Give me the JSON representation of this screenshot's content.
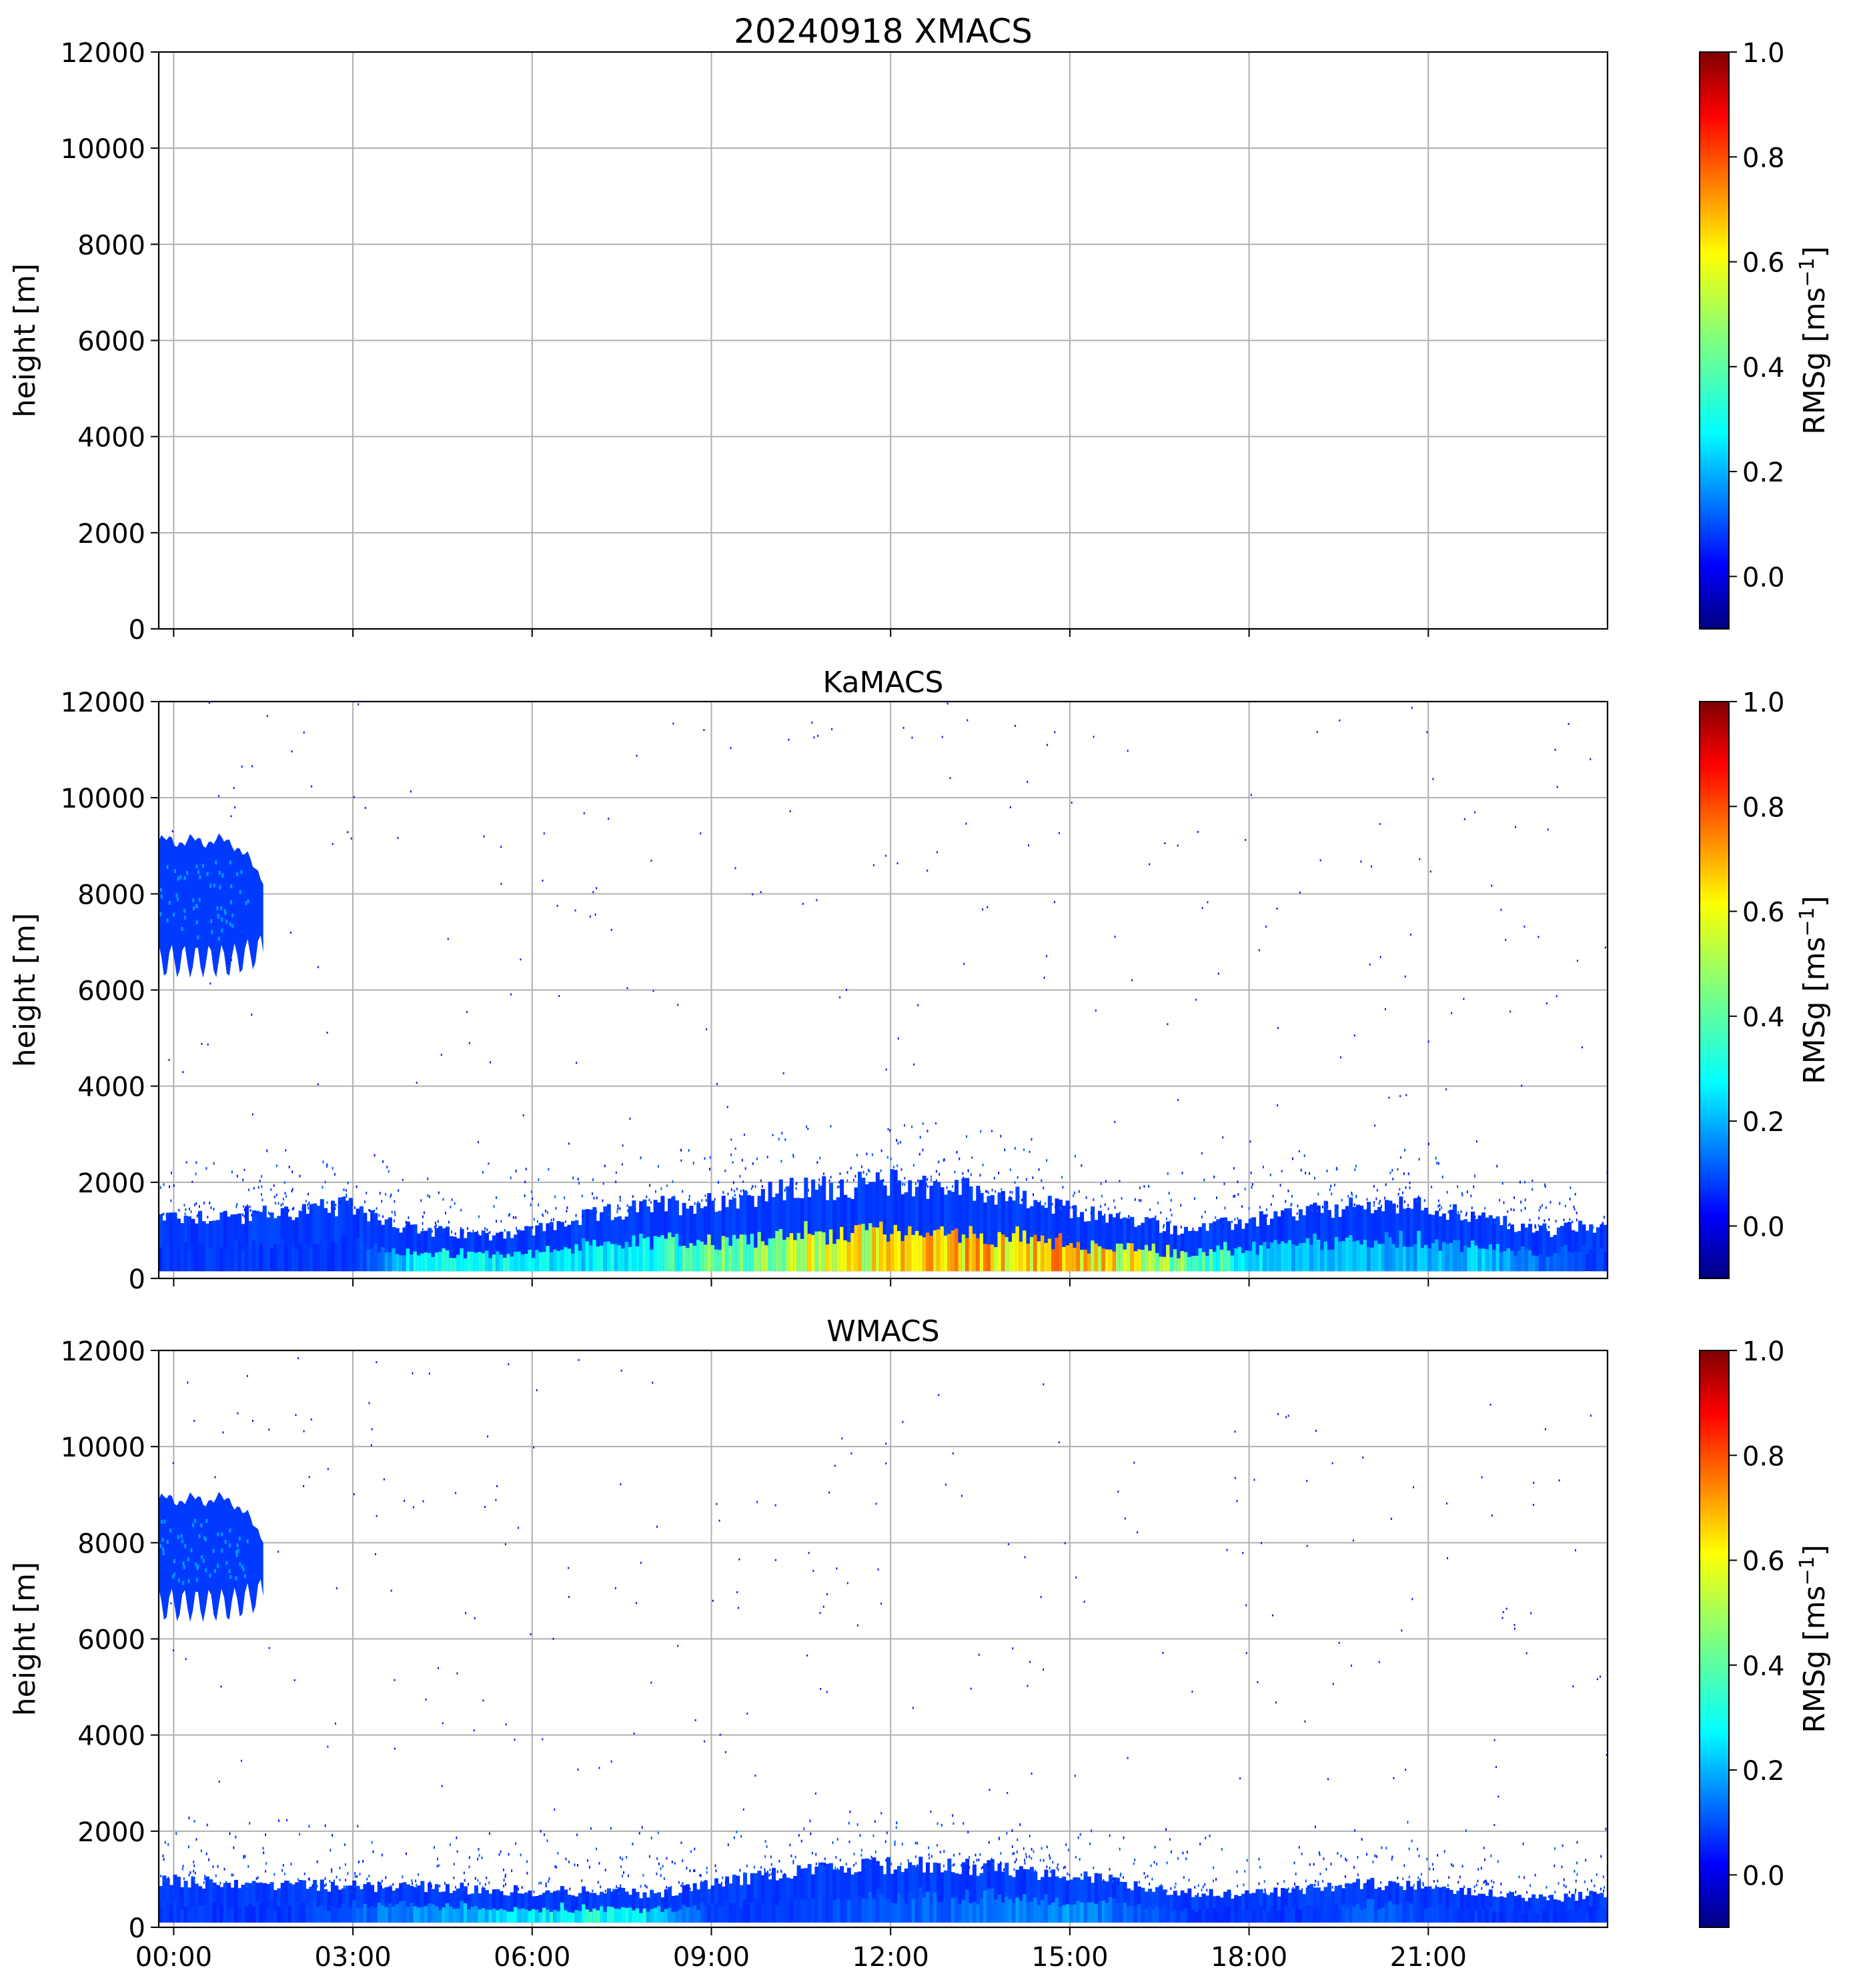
{
  "chart_data": [
    {
      "type": "heatmap",
      "title": "20240918 XMACS",
      "xlabel": "",
      "ylabel": "height [m]",
      "xlim": [
        -0.25,
        24.0
      ],
      "ylim": [
        0,
        12000
      ],
      "yticks": [
        0,
        2000,
        4000,
        6000,
        8000,
        10000,
        12000
      ],
      "xticks": [
        0,
        3,
        6,
        9,
        12,
        15,
        18,
        21
      ],
      "xtick_labels": [],
      "grid": true,
      "colorbar": {
        "label": "RMSg [ms",
        "label_sup": "−1",
        "label_close": "]",
        "range": [
          -0.1,
          1.0
        ],
        "ticks": [
          "0.0",
          "0.2",
          "0.4",
          "0.6",
          "0.8",
          "1.0"
        ],
        "cmap": "jet"
      },
      "blobs": [],
      "band": null,
      "streaks": []
    },
    {
      "type": "heatmap",
      "title": "KaMACS",
      "xlabel": "",
      "ylabel": "height [m]",
      "xlim": [
        -0.25,
        24.0
      ],
      "ylim": [
        0,
        12000
      ],
      "yticks": [
        0,
        2000,
        4000,
        6000,
        8000,
        10000,
        12000
      ],
      "xticks": [
        0,
        3,
        6,
        9,
        12,
        15,
        18,
        21
      ],
      "xtick_labels": [],
      "grid": true,
      "colorbar": {
        "label": "RMSg [ms",
        "label_sup": "−1",
        "label_close": "]",
        "range": [
          -0.1,
          1.0
        ],
        "ticks": [
          "0.0",
          "0.2",
          "0.4",
          "0.6",
          "0.8",
          "1.0"
        ],
        "cmap": "jet"
      },
      "blobs": [
        {
          "t0": -0.25,
          "t1": 1.5,
          "h_bottom": 6600,
          "h_top": 9100,
          "rmsg": 0.1
        }
      ],
      "band": {
        "t": [
          -0.25,
          1.0,
          2.0,
          3.0,
          4.0,
          5.0,
          6.0,
          7.0,
          8.0,
          9.0,
          10.0,
          11.0,
          12.0,
          13.0,
          14.0,
          15.0,
          16.0,
          17.0,
          18.0,
          19.0,
          20.0,
          21.0,
          22.0,
          23.0,
          24.0
        ],
        "top": [
          1300,
          1300,
          1400,
          1500,
          1000,
          900,
          1000,
          1300,
          1500,
          1600,
          1800,
          1900,
          2000,
          1900,
          1700,
          1400,
          1200,
          1000,
          1200,
          1400,
          1500,
          1500,
          1200,
          1000,
          1100
        ],
        "bottom": [
          150,
          150,
          150,
          150,
          150,
          150,
          150,
          150,
          150,
          150,
          150,
          150,
          150,
          150,
          150,
          150,
          150,
          150,
          150,
          150,
          150,
          150,
          150,
          150,
          150
        ],
        "core_rmsg": [
          0.1,
          0.1,
          0.1,
          0.1,
          0.3,
          0.35,
          0.3,
          0.3,
          0.35,
          0.45,
          0.5,
          0.6,
          0.6,
          0.7,
          0.65,
          0.7,
          0.6,
          0.45,
          0.3,
          0.25,
          0.25,
          0.25,
          0.25,
          0.15,
          0.1
        ]
      },
      "streaks": []
    },
    {
      "type": "heatmap",
      "title": "WMACS",
      "xlabel": "",
      "ylabel": "height [m]",
      "xlim": [
        -0.25,
        24.0
      ],
      "ylim": [
        0,
        12000
      ],
      "yticks": [
        0,
        2000,
        4000,
        6000,
        8000,
        10000,
        12000
      ],
      "xticks": [
        0,
        3,
        6,
        9,
        12,
        15,
        18,
        21
      ],
      "xtick_labels": [
        "00:00",
        "03:00",
        "06:00",
        "09:00",
        "12:00",
        "15:00",
        "18:00",
        "21:00"
      ],
      "grid": true,
      "colorbar": {
        "label": "RMSg [ms",
        "label_sup": "−1",
        "label_close": "]",
        "range": [
          -0.1,
          1.0
        ],
        "ticks": [
          "0.0",
          "0.2",
          "0.4",
          "0.6",
          "0.8",
          "1.0"
        ],
        "cmap": "jet"
      },
      "blobs": [
        {
          "t0": -0.25,
          "t1": 1.5,
          "h_bottom": 6700,
          "h_top": 8900,
          "rmsg": 0.1
        }
      ],
      "band": {
        "t": [
          -0.25,
          1.0,
          2.0,
          3.0,
          4.0,
          5.0,
          6.0,
          7.0,
          8.0,
          9.0,
          10.0,
          11.0,
          12.0,
          13.0,
          14.0,
          15.0,
          16.0,
          17.0,
          18.0,
          19.0,
          20.0,
          21.0,
          22.0,
          23.0,
          24.0
        ],
        "top": [
          1000,
          900,
          900,
          850,
          850,
          800,
          750,
          750,
          700,
          900,
          1100,
          1200,
          1300,
          1300,
          1200,
          1100,
          900,
          700,
          700,
          800,
          900,
          900,
          700,
          600,
          700
        ],
        "bottom": [
          100,
          100,
          100,
          100,
          100,
          100,
          100,
          100,
          100,
          100,
          100,
          100,
          100,
          100,
          100,
          100,
          100,
          100,
          100,
          100,
          100,
          100,
          100,
          100,
          100
        ],
        "core_rmsg": [
          0.1,
          0.1,
          0.1,
          0.15,
          0.2,
          0.25,
          0.3,
          0.35,
          0.3,
          0.1,
          0.1,
          0.12,
          0.15,
          0.15,
          0.2,
          0.2,
          0.15,
          0.1,
          0.1,
          0.1,
          0.15,
          0.12,
          0.1,
          0.1,
          0.1
        ]
      },
      "streaks": []
    }
  ]
}
